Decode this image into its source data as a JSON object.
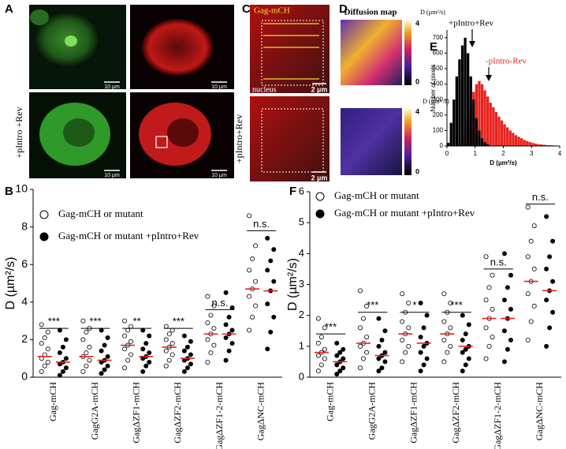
{
  "panels": [
    "A",
    "B",
    "C",
    "D",
    "E",
    "F"
  ],
  "panel_a": {
    "row_label": "+pIntro +Rev",
    "scale_bars": [
      "10 µm",
      "10 µm",
      "10 µm",
      "10 µm"
    ]
  },
  "panel_c": {
    "channel": "Gag-mCH",
    "region": "nucleus",
    "row_label": "+pIntro+Rev",
    "scale_bars": [
      "2 µm",
      "2 µm"
    ]
  },
  "panel_d": {
    "title": "Diffusion map",
    "colorbars": [
      {
        "label": "D (µm²/s)",
        "ticks": [
          0,
          4
        ]
      },
      {
        "label": "D (µm² /s)",
        "ticks": [
          0,
          4
        ]
      }
    ]
  },
  "chart_data": [
    {
      "type": "histogram",
      "xlabel": "D (µm²/s)",
      "ylabel": "Number of pixels",
      "bins": [
        0,
        0.1,
        0.2,
        0.3,
        0.4,
        0.5,
        0.6,
        0.7,
        0.8,
        0.9,
        1,
        1.1,
        1.2,
        1.3,
        1.4,
        1.5,
        1.6,
        1.7,
        1.8,
        1.9,
        2,
        2.1,
        2.2,
        2.3,
        2.4,
        2.5,
        2.6,
        2.7,
        2.8,
        2.9,
        3,
        3.1,
        3.2,
        3.3,
        3.4,
        3.5,
        3.6,
        3.7,
        3.8,
        3.9,
        4
      ],
      "series": [
        {
          "name": "-pIntro-Rev",
          "color": "#e8221c",
          "counts": [
            0,
            0,
            0,
            0,
            20,
            60,
            120,
            200,
            280,
            350,
            400,
            420,
            400,
            360,
            320,
            280,
            250,
            220,
            190,
            165,
            140,
            120,
            100,
            85,
            70,
            60,
            50,
            40,
            32,
            25,
            20,
            15,
            12,
            10,
            8,
            6,
            5,
            4,
            3,
            2
          ]
        },
        {
          "name": "+pIntro+Rev",
          "color": "#000000",
          "counts": [
            20,
            150,
            300,
            450,
            560,
            650,
            700,
            600,
            450,
            300,
            180,
            100,
            50,
            25,
            10,
            0,
            0,
            0,
            0,
            0,
            0,
            0,
            0,
            0,
            0,
            0,
            0,
            0,
            0,
            0,
            0,
            0,
            0,
            0,
            0,
            0,
            0,
            0,
            0,
            0
          ]
        }
      ],
      "xlim": [
        0,
        4
      ],
      "xticks": [
        0,
        1,
        2,
        3,
        4
      ],
      "ylim": [
        0,
        750
      ],
      "yticks": [
        0,
        100,
        200,
        300,
        400,
        500,
        600,
        700
      ]
    },
    {
      "type": "dot",
      "ylabel": "D (µm²/s)",
      "categories": [
        "Gag-mCH",
        "GagG2A-mCH",
        "GagΔZF1-mCH",
        "GagΔZF2-mCH",
        "GagΔZF1-2-mCH",
        "GagΔNC-mCH"
      ],
      "series": [
        {
          "name": "Gag-mCH or mutant",
          "marker": "open",
          "points": [
            [
              0.3,
              0.6,
              0.8,
              1.0,
              1.2,
              1.5,
              1.8,
              2.1,
              2.4,
              2.8
            ],
            [
              0.3,
              0.6,
              0.9,
              1.1,
              1.3,
              1.6,
              2.0,
              2.4,
              2.6,
              3.0
            ],
            [
              0.5,
              0.9,
              1.2,
              1.5,
              1.7,
              1.9,
              2.2,
              2.5,
              2.7,
              3.0
            ],
            [
              0.6,
              0.9,
              1.2,
              1.4,
              1.6,
              1.8,
              2.0,
              2.3,
              2.5,
              2.7
            ],
            [
              0.8,
              1.3,
              1.7,
              2.0,
              2.3,
              2.6,
              2.9,
              3.3,
              3.8,
              4.3
            ],
            [
              2.5,
              3.2,
              3.8,
              4.3,
              4.7,
              5.1,
              5.7,
              6.3,
              7.0,
              8.6
            ]
          ],
          "medians": [
            1.1,
            1.1,
            1.7,
            1.6,
            2.3,
            4.7
          ]
        },
        {
          "name": "Gag-mCH or mutant +pIntro+Rev",
          "marker": "filled",
          "points": [
            [
              0.1,
              0.3,
              0.5,
              0.7,
              0.8,
              1.0,
              1.3,
              1.6,
              2.0,
              2.5
            ],
            [
              0.2,
              0.4,
              0.6,
              0.8,
              0.9,
              1.1,
              1.4,
              1.7,
              2.1,
              2.5
            ],
            [
              0.3,
              0.6,
              0.8,
              1.0,
              1.1,
              1.3,
              1.5,
              1.8,
              2.2,
              2.5
            ],
            [
              0.3,
              0.5,
              0.7,
              0.9,
              1.0,
              1.2,
              1.4,
              1.6,
              1.9,
              2.2
            ],
            [
              0.9,
              1.4,
              1.8,
              2.1,
              2.3,
              2.5,
              2.8,
              3.2,
              3.7,
              4.5
            ],
            [
              1.5,
              2.4,
              3.2,
              3.9,
              4.6,
              5.1,
              5.7,
              6.2,
              6.8,
              7.4
            ]
          ],
          "medians": [
            0.8,
            0.9,
            1.1,
            1.0,
            2.3,
            4.6
          ]
        }
      ],
      "median_color": "#e8221c",
      "significance": [
        {
          "label": "***",
          "y": 2.6
        },
        {
          "label": "***",
          "y": 2.6
        },
        {
          "label": "**",
          "y": 2.6
        },
        {
          "label": "***",
          "y": 2.6
        },
        {
          "label": "n.s.",
          "y": 3.6
        },
        {
          "label": "n.s.",
          "y": 7.8
        }
      ],
      "ylim": [
        0,
        10
      ],
      "yticks": [
        0,
        2,
        4,
        6,
        8,
        10
      ]
    },
    {
      "type": "dot",
      "ylabel": "D (µm²/s)",
      "categories": [
        "Gag-mCH",
        "GagG2A-mCH",
        "GagΔZF1-mCH",
        "GagΔZF2-mCH",
        "GagΔZF1-2-mCH",
        "GagΔNC-mCH"
      ],
      "series": [
        {
          "name": "Gag-mCH or mutant",
          "marker": "open",
          "points": [
            [
              0.2,
              0.4,
              0.6,
              0.7,
              0.8,
              0.9,
              1.1,
              1.3,
              1.6,
              1.9
            ],
            [
              0.3,
              0.6,
              0.8,
              1.0,
              1.1,
              1.3,
              1.6,
              1.9,
              2.3,
              2.8
            ],
            [
              0.5,
              0.8,
              1.0,
              1.2,
              1.4,
              1.6,
              1.8,
              2.1,
              2.4,
              2.7
            ],
            [
              0.5,
              0.8,
              1.0,
              1.2,
              1.4,
              1.6,
              1.8,
              2.1,
              2.4,
              2.7
            ],
            [
              0.6,
              1.0,
              1.3,
              1.6,
              1.9,
              2.2,
              2.5,
              2.9,
              3.3,
              3.9
            ],
            [
              1.2,
              1.8,
              2.3,
              2.7,
              3.1,
              3.5,
              3.9,
              4.4,
              4.9,
              5.5
            ]
          ],
          "medians": [
            0.8,
            1.1,
            1.4,
            1.4,
            1.9,
            3.1
          ]
        },
        {
          "name": "Gag-mCH or mutant +pIntro+Rev",
          "marker": "filled",
          "points": [
            [
              0.1,
              0.2,
              0.3,
              0.4,
              0.5,
              0.6,
              0.7,
              0.8,
              0.9,
              1.1
            ],
            [
              0.2,
              0.3,
              0.5,
              0.6,
              0.7,
              0.8,
              1.0,
              1.2,
              1.5,
              1.9
            ],
            [
              0.2,
              0.4,
              0.6,
              0.8,
              1.0,
              1.1,
              1.3,
              1.6,
              2.0,
              2.4
            ],
            [
              0.2,
              0.4,
              0.6,
              0.8,
              0.9,
              1.0,
              1.2,
              1.4,
              1.7,
              2.0
            ],
            [
              0.5,
              0.9,
              1.2,
              1.5,
              1.9,
              2.2,
              2.5,
              2.9,
              3.3,
              4.0
            ],
            [
              1.0,
              1.6,
              2.1,
              2.5,
              2.8,
              3.1,
              3.5,
              3.9,
              4.4,
              5.2
            ]
          ],
          "medians": [
            0.5,
            0.7,
            1.1,
            1.0,
            1.9,
            2.8
          ]
        }
      ],
      "median_color": "#e8221c",
      "significance": [
        {
          "label": "***",
          "y": 1.4
        },
        {
          "label": "***",
          "y": 2.1
        },
        {
          "label": "*",
          "y": 2.1
        },
        {
          "label": "***",
          "y": 2.1
        },
        {
          "label": "n.s.",
          "y": 3.5
        },
        {
          "label": "n.s.",
          "y": 5.6
        }
      ],
      "ylim": [
        0,
        6
      ],
      "yticks": [
        0,
        1,
        2,
        3,
        4,
        5,
        6
      ]
    }
  ]
}
